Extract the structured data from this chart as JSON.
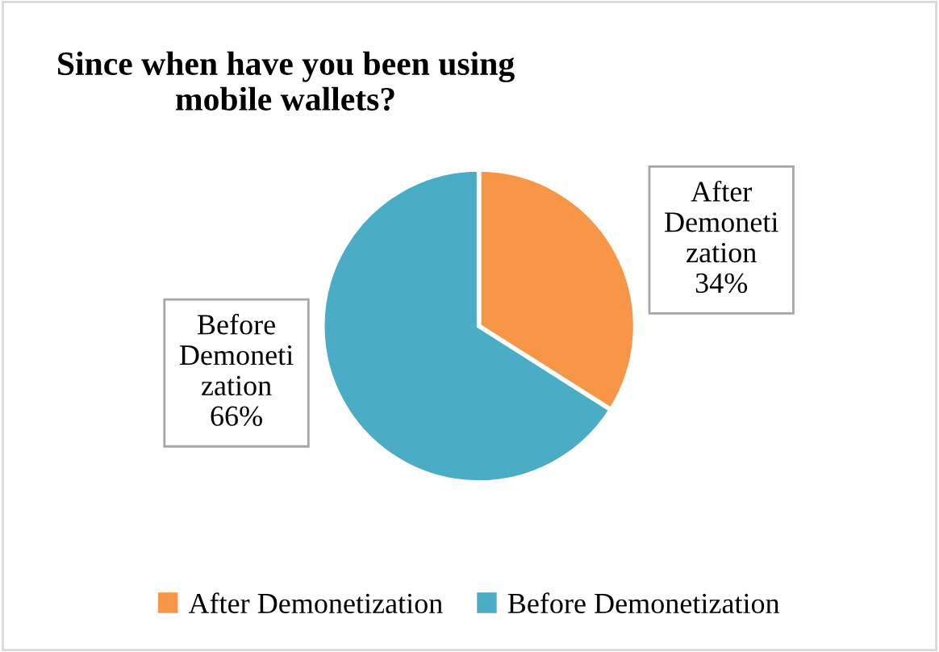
{
  "chart_data": {
    "type": "pie",
    "title": "Since when have you been using\nmobile wallets?",
    "categories": [
      "After Demonetization",
      "Before Demonetization"
    ],
    "values": [
      34,
      66
    ],
    "value_labels": [
      "34%",
      "66%"
    ],
    "colors": [
      "#f79646",
      "#4bacc6"
    ],
    "legend": "bottom"
  }
}
